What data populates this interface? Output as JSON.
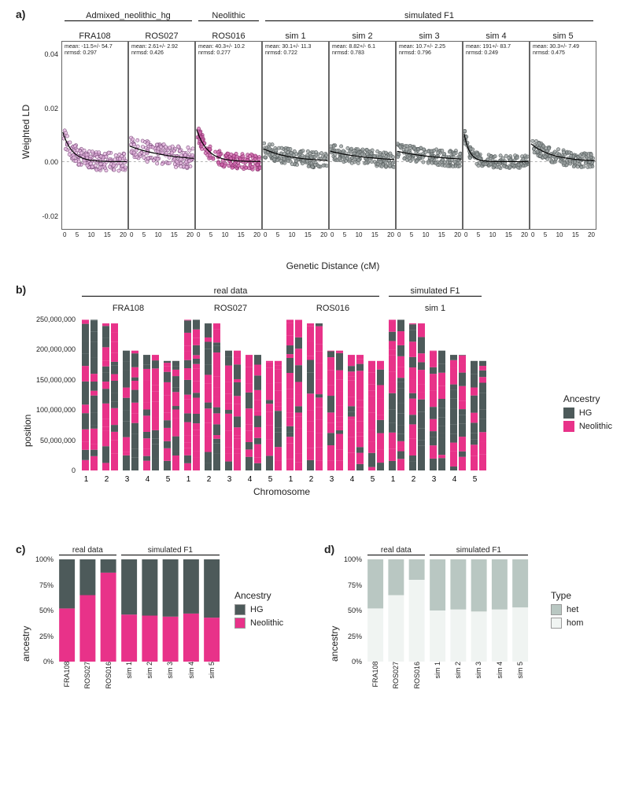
{
  "colors": {
    "hg": "#4d5a5a",
    "neolithic": "#e83289",
    "admixed_point_fill": "#e5b8e0",
    "admixed_point_stroke": "#7a4a7a",
    "neolithic_point_fill": "#d16bb0",
    "neolithic_point_stroke": "#8a2d6b",
    "sim_point_fill": "#9aa0a0",
    "sim_point_stroke": "#555c5c",
    "het": "#b9c7c2",
    "hom": "#f0f4f2",
    "grid": "#d9d9d9",
    "axis": "#333333",
    "bg": "#ffffff"
  },
  "panelA": {
    "label": "a)",
    "y_label": "Weighted LD",
    "x_label": "Genetic Distance (cM)",
    "ylim": [
      -0.025,
      0.045
    ],
    "yticks": [
      -0.02,
      0.0,
      0.02,
      0.04
    ],
    "xlim": [
      0,
      20
    ],
    "xticks": [
      0,
      5,
      10,
      15,
      20
    ],
    "groups": [
      {
        "name": "Admixed_neolithic_hg",
        "subs": [
          "FRA108",
          "ROS027"
        ]
      },
      {
        "name": "Neolithic",
        "subs": [
          "ROS016"
        ]
      },
      {
        "name": "simulated F1",
        "subs": [
          "sim 1",
          "sim 2",
          "sim 3",
          "sim 4",
          "sim 5"
        ]
      }
    ],
    "panels": [
      {
        "key": "FRA108",
        "color": "admixed",
        "mean": "mean: -11.5+/- 54.7",
        "nrmsd": "nrmsd: 0.297",
        "curve_a": 0.012,
        "curve_b": 0.35,
        "noise": 0.0035,
        "seed": 1
      },
      {
        "key": "ROS027",
        "color": "admixed",
        "mean": "mean: 2.61+/- 2.92",
        "nrmsd": "nrmsd: 0.426",
        "curve_a": 0.006,
        "curve_b": 0.08,
        "noise": 0.004,
        "seed": 2
      },
      {
        "key": "ROS016",
        "color": "neolithic",
        "mean": "mean: 40.3+/- 10.2",
        "nrmsd": "nrmsd: 0.277",
        "curve_a": 0.013,
        "curve_b": 0.3,
        "noise": 0.003,
        "seed": 3
      },
      {
        "key": "sim 1",
        "color": "sim",
        "mean": "mean: 30.1+/- 11.3",
        "nrmsd": "nrmsd: 0.722",
        "curve_a": 0.005,
        "curve_b": 0.12,
        "noise": 0.003,
        "seed": 4
      },
      {
        "key": "sim 2",
        "color": "sim",
        "mean": "mean: 8.82+/- 6.1",
        "nrmsd": "nrmsd: 0.783",
        "curve_a": 0.004,
        "curve_b": 0.08,
        "noise": 0.003,
        "seed": 5
      },
      {
        "key": "sim 3",
        "color": "sim",
        "mean": "mean: 10.7+/- 2.25",
        "nrmsd": "nrmsd: 0.796",
        "curve_a": 0.004,
        "curve_b": 0.07,
        "noise": 0.003,
        "seed": 6
      },
      {
        "key": "sim 4",
        "color": "sim",
        "mean": "mean: 191+/- 83.7",
        "nrmsd": "nrmsd: 0.249",
        "curve_a": 0.012,
        "curve_b": 0.6,
        "noise": 0.0025,
        "seed": 7
      },
      {
        "key": "sim 5",
        "color": "sim",
        "mean": "mean: 30.3+/- 7.49",
        "nrmsd": "nrmsd: 0.475",
        "curve_a": 0.007,
        "curve_b": 0.15,
        "noise": 0.0028,
        "seed": 8
      }
    ]
  },
  "panelB": {
    "label": "b)",
    "y_label": "position",
    "x_label": "Chromosome",
    "ylim": [
      0,
      260000000
    ],
    "yticks": [
      0,
      50000000,
      100000000,
      150000000,
      200000000,
      250000000
    ],
    "ytick_labels": [
      "0",
      "50,000,000",
      "100,000,000",
      "150,000,000",
      "200,000,000",
      "250,000,000"
    ],
    "groups": [
      {
        "name": "real data",
        "subs": [
          "FRA108",
          "ROS027",
          "ROS016"
        ]
      },
      {
        "name": "simulated F1",
        "subs": [
          "sim 1"
        ]
      }
    ],
    "chrom_heights": {
      "1": 249000000,
      "2": 243000000,
      "3": 198000000,
      "4": 191000000,
      "5": 181000000
    },
    "legend_title": "Ancestry",
    "legend_items": [
      {
        "label": "HG",
        "color_key": "hg"
      },
      {
        "label": "Neolithic",
        "color_key": "neolithic"
      }
    ],
    "samples": [
      "FRA108",
      "ROS027",
      "ROS016",
      "sim 1"
    ],
    "chroms": [
      "1",
      "2",
      "3",
      "4",
      "5"
    ],
    "seg_seed": {
      "FRA108": 11,
      "ROS027": 12,
      "ROS016": 13,
      "sim 1": 14
    },
    "neolithic_bias": {
      "FRA108": 0.52,
      "ROS027": 0.65,
      "ROS016": 0.85,
      "sim 1": 0.46
    }
  },
  "panelC": {
    "label": "c)",
    "y_label": "ancestry",
    "ylim": [
      0,
      1.0
    ],
    "yticks": [
      0,
      0.25,
      0.5,
      0.75,
      1.0
    ],
    "ytick_labels": [
      "0%",
      "25%",
      "50%",
      "75%",
      "100%"
    ],
    "groups": [
      {
        "name": "real data",
        "items": [
          "FRA108",
          "ROS027",
          "ROS016"
        ]
      },
      {
        "name": "simulated F1",
        "items": [
          "sim 1",
          "sim 2",
          "sim 3",
          "sim 4",
          "sim 5"
        ]
      }
    ],
    "values": {
      "FRA108": {
        "neolithic": 0.52,
        "hg": 0.48
      },
      "ROS027": {
        "neolithic": 0.65,
        "hg": 0.35
      },
      "ROS016": {
        "neolithic": 0.87,
        "hg": 0.13
      },
      "sim 1": {
        "neolithic": 0.46,
        "hg": 0.54
      },
      "sim 2": {
        "neolithic": 0.45,
        "hg": 0.55
      },
      "sim 3": {
        "neolithic": 0.44,
        "hg": 0.56
      },
      "sim 4": {
        "neolithic": 0.47,
        "hg": 0.53
      },
      "sim 5": {
        "neolithic": 0.43,
        "hg": 0.57
      }
    },
    "legend_title": "Ancestry",
    "legend_items": [
      {
        "label": "HG",
        "color_key": "hg"
      },
      {
        "label": "Neolithic",
        "color_key": "neolithic"
      }
    ]
  },
  "panelD": {
    "label": "d)",
    "y_label": "ancestry",
    "ylim": [
      0,
      1.0
    ],
    "yticks": [
      0,
      0.25,
      0.5,
      0.75,
      1.0
    ],
    "ytick_labels": [
      "0%",
      "25%",
      "50%",
      "75%",
      "100%"
    ],
    "groups": [
      {
        "name": "real data",
        "items": [
          "FRA108",
          "ROS027",
          "ROS016"
        ]
      },
      {
        "name": "simulated F1",
        "items": [
          "sim 1",
          "sim 2",
          "sim 3",
          "sim 4",
          "sim 5"
        ]
      }
    ],
    "values": {
      "FRA108": {
        "hom": 0.52,
        "het": 0.48
      },
      "ROS027": {
        "hom": 0.65,
        "het": 0.35
      },
      "ROS016": {
        "hom": 0.8,
        "het": 0.2
      },
      "sim 1": {
        "hom": 0.5,
        "het": 0.5
      },
      "sim 2": {
        "hom": 0.51,
        "het": 0.49
      },
      "sim 3": {
        "hom": 0.49,
        "het": 0.51
      },
      "sim 4": {
        "hom": 0.51,
        "het": 0.49
      },
      "sim 5": {
        "hom": 0.53,
        "het": 0.47
      }
    },
    "legend_title": "Type",
    "legend_items": [
      {
        "label": "het",
        "color_key": "het"
      },
      {
        "label": "hom",
        "color_key": "hom"
      }
    ]
  }
}
